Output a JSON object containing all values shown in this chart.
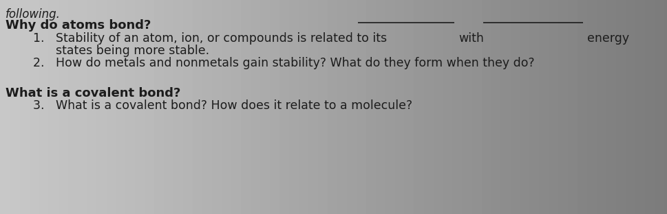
{
  "background_color_left": "#c8c4be",
  "background_color_right": "#a8a49e",
  "text_color": "#1c1c1c",
  "following_text": "following.",
  "header1": "Why do atoms bond?",
  "item1_part1": "1.   Stability of an atom, ion, or compounds is related to its",
  "item1_with": "with",
  "item1_energy": "energy",
  "item1_line2": "      states being more stable.",
  "item2": "2.   How do metals and nonmetals gain stability? What do they form when they do?",
  "header2": "What is a covalent bond?",
  "item3": "3.   What is a covalent bond? How does it relate to a molecule?",
  "following_fontsize": 12,
  "header_fontsize": 13,
  "item_fontsize": 12.5,
  "fig_width": 9.69,
  "fig_height": 3.12,
  "dpi": 100
}
